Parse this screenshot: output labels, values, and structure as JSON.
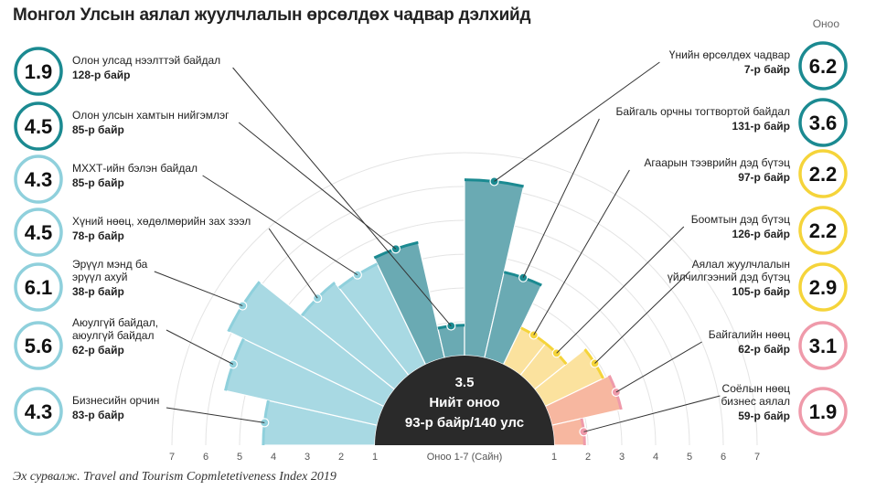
{
  "title": "Монгол Улсын аялал жуулчлалын өрсөлдөх чадвар дэлхийд",
  "score_header": "Оноо",
  "source": "Эх сурвалж. Travel and Tourism Copmletetiveness Index 2019",
  "center": {
    "score": "3.5",
    "label": "Нийт оноо",
    "rank": "93-р байр/140 улс"
  },
  "colors": {
    "blue_light": "#a8d9e3",
    "blue_dark": "#6aaab3",
    "yellow": "#fbe29e",
    "pink": "#f7b7a0",
    "teal_ring": "#1b8a91",
    "blue_ring": "#8fd0dc",
    "yellow_ring": "#f5d43a",
    "pink_ring": "#ef9aaa",
    "center": "#2a2a2a"
  },
  "chart_data": {
    "type": "bar",
    "subtype": "polar-semicircle",
    "axis_label": "Оноо 1-7 (Сайн)",
    "ticks_left": [
      "7",
      "6",
      "5",
      "4",
      "3",
      "2",
      "1"
    ],
    "ticks_right": [
      "1",
      "2",
      "3",
      "4",
      "5",
      "6",
      "7"
    ],
    "ylim": [
      1,
      7
    ],
    "categories": [
      {
        "name": "Бизнесийн орчин",
        "rank": "83-р байр",
        "score": 4.3,
        "group": "blue_light"
      },
      {
        "name": "Аюулгүй байдал, аюулгүй байдал",
        "rank": "62-р байр",
        "score": 5.6,
        "group": "blue_light"
      },
      {
        "name": "Эрүүл мэнд ба эрүүл ахуй",
        "rank": "38-р байр",
        "score": 6.1,
        "group": "blue_light"
      },
      {
        "name": "Хүний нөөц, хөдөлмөрийн зах зээл",
        "rank": "78-р байр",
        "score": 4.5,
        "group": "blue_light"
      },
      {
        "name": "МХХТ-ийн бэлэн байдал",
        "rank": "85-р байр",
        "score": 4.3,
        "group": "blue_light"
      },
      {
        "name": "Олон улсын хамтын нийгэмлэг",
        "rank": "85-р байр",
        "score": 4.5,
        "group": "blue_dark"
      },
      {
        "name": "Олон улсад нээлттэй байдал",
        "rank": "128-р байр",
        "score": 1.9,
        "group": "blue_dark"
      },
      {
        "name": "Үнийн өрсөлдөх чадвар",
        "rank": "7-р байр",
        "score": 6.2,
        "group": "blue_dark"
      },
      {
        "name": "Байгаль орчны тогтвортой байдал",
        "rank": "131-р байр",
        "score": 3.6,
        "group": "blue_dark"
      },
      {
        "name": "Агаарын тээврийн дэд бүтэц",
        "rank": "97-р байр",
        "score": 2.2,
        "group": "yellow"
      },
      {
        "name": "Боомтын дэд бүтэц",
        "rank": "126-р байр",
        "score": 2.2,
        "group": "yellow"
      },
      {
        "name": "Аялал жуулчлалын үйлчилгээний дэд бүтэц",
        "rank": "105-р байр",
        "score": 2.9,
        "group": "yellow"
      },
      {
        "name": "Байгалийн нөөц",
        "rank": "62-р байр",
        "score": 3.1,
        "group": "pink"
      },
      {
        "name": "Соёлын нөөц бизнес аялал",
        "rank": "59-р байр",
        "score": 1.9,
        "group": "pink"
      }
    ],
    "labels_left": [
      {
        "lines": [
          "Олон улсад нээлттэй байдал"
        ],
        "rank": "128-р байр",
        "score": "1.9",
        "ring": "teal_ring"
      },
      {
        "lines": [
          "Олон улсын хамтын нийгэмлэг"
        ],
        "rank": "85-р байр",
        "score": "4.5",
        "ring": "teal_ring"
      },
      {
        "lines": [
          "МХХТ-ийн бэлэн байдал"
        ],
        "rank": "85-р байр",
        "score": "4.3",
        "ring": "blue_ring"
      },
      {
        "lines": [
          "Хүний нөөц, хөдөлмөрийн зах зээл"
        ],
        "rank": "78-р байр",
        "score": "4.5",
        "ring": "blue_ring"
      },
      {
        "lines": [
          "Эрүүл мэнд ба",
          "эрүүл ахуй"
        ],
        "rank": "38-р байр",
        "score": "6.1",
        "ring": "blue_ring"
      },
      {
        "lines": [
          "Аюулгүй байдал,",
          "аюулгүй байдал"
        ],
        "rank": "62-р байр",
        "score": "5.6",
        "ring": "blue_ring"
      },
      {
        "lines": [
          "Бизнесийн орчин"
        ],
        "rank": "83-р байр",
        "score": "4.3",
        "ring": "blue_ring"
      }
    ],
    "labels_right": [
      {
        "lines": [
          "Үнийн өрсөлдөх чадвар"
        ],
        "rank": "7-р байр",
        "score": "6.2",
        "ring": "teal_ring"
      },
      {
        "lines": [
          "Байгаль орчны тогтвортой байдал"
        ],
        "rank": "131-р байр",
        "score": "3.6",
        "ring": "teal_ring"
      },
      {
        "lines": [
          "Агаарын тээврийн дэд бүтэц"
        ],
        "rank": "97-р байр",
        "score": "2.2",
        "ring": "yellow_ring"
      },
      {
        "lines": [
          "Боомтын дэд бүтэц"
        ],
        "rank": "126-р байр",
        "score": "2.2",
        "ring": "yellow_ring"
      },
      {
        "lines": [
          "Аялал жуулчлалын",
          "үйлчилгээний дэд бүтэц"
        ],
        "rank": "105-р байр",
        "score": "2.9",
        "ring": "yellow_ring"
      },
      {
        "lines": [
          "Байгалийн нөөц"
        ],
        "rank": "62-р байр",
        "score": "3.1",
        "ring": "pink_ring"
      },
      {
        "lines": [
          "Соёлын нөөц",
          "бизнес аялал"
        ],
        "rank": "59-р байр",
        "score": "1.9",
        "ring": "pink_ring"
      }
    ]
  }
}
